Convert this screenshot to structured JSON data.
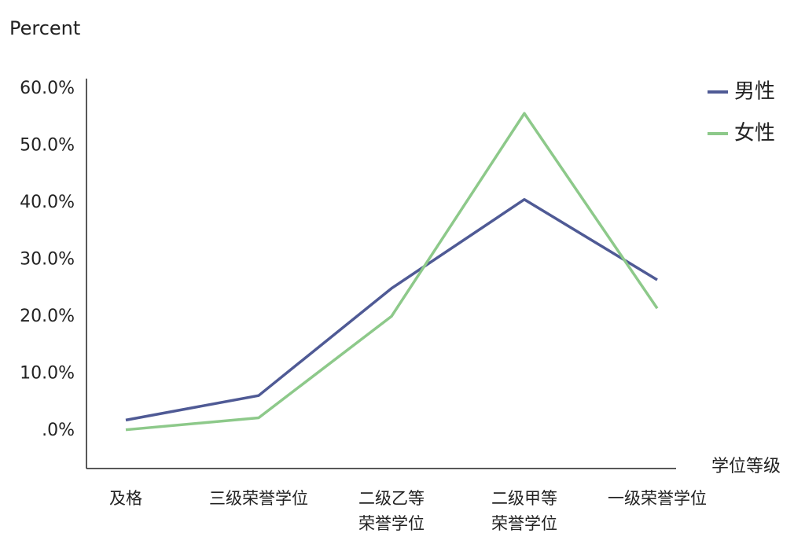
{
  "chart_data": {
    "type": "line",
    "y_label": "Percent",
    "x_label": "学位等级",
    "categories": [
      [
        "及格"
      ],
      [
        "三级荣誉学位"
      ],
      [
        "二级乙等",
        "荣誉学位"
      ],
      [
        "二级甲等",
        "荣誉学位"
      ],
      [
        "一级荣誉学位"
      ]
    ],
    "series": [
      {
        "name": "男性",
        "color": "#4f5a95",
        "values": [
          1.9,
          6.2,
          25.0,
          40.6,
          26.5
        ]
      },
      {
        "name": "女性",
        "color": "#8dc98a",
        "values": [
          0.2,
          2.3,
          20.1,
          55.7,
          21.5
        ]
      }
    ],
    "ylim": [
      -6.6,
      61.8
    ],
    "yticks": [
      {
        "value": 0,
        "label": ".0%"
      },
      {
        "value": 10,
        "label": "10.0%"
      },
      {
        "value": 20,
        "label": "20.0%"
      },
      {
        "value": 30,
        "label": "30.0%"
      },
      {
        "value": 40,
        "label": "40.0%"
      },
      {
        "value": 50,
        "label": "50.0%"
      },
      {
        "value": 60,
        "label": "60.0%"
      }
    ],
    "grid": false,
    "legend": "top-right"
  }
}
